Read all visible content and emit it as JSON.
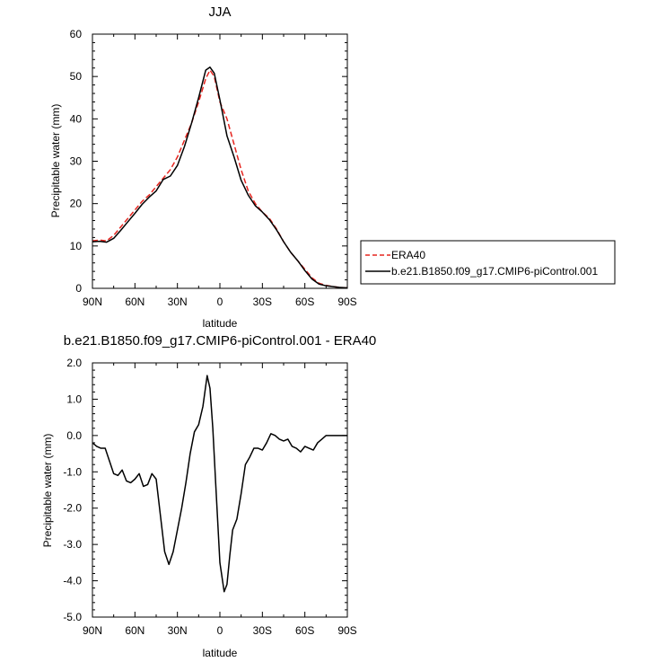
{
  "chart_data": [
    {
      "type": "line",
      "title": "JJA",
      "xlabel": "latitude",
      "ylabel": "Precipitable water (mm)",
      "xlim": [
        -90,
        90
      ],
      "ylim": [
        0,
        60
      ],
      "x_ticks": [
        -90,
        -60,
        -30,
        0,
        30,
        60,
        90
      ],
      "x_tick_labels": [
        "90N",
        "60N",
        "30N",
        "0",
        "30S",
        "60S",
        "90S"
      ],
      "y_ticks": [
        0,
        10,
        20,
        30,
        40,
        50,
        60
      ],
      "y_tick_labels": [
        "0",
        "10",
        "20",
        "30",
        "40",
        "50",
        "60"
      ],
      "legend_position": "right",
      "series": [
        {
          "name": "ERA40",
          "color": "#e6251f",
          "dash": "dashed",
          "x": [
            -90,
            -85,
            -80,
            -75,
            -70,
            -65,
            -60,
            -55,
            -50,
            -45,
            -40,
            -35,
            -30,
            -25,
            -20,
            -15,
            -10,
            -7,
            -4,
            0,
            5,
            10,
            15,
            20,
            25,
            30,
            35,
            40,
            45,
            50,
            55,
            60,
            65,
            70,
            75,
            80,
            85,
            90
          ],
          "y": [
            11.2,
            11.4,
            11.2,
            12.5,
            14.5,
            16.5,
            18.5,
            20.5,
            22,
            24,
            26,
            28,
            31,
            35,
            39,
            44,
            49.5,
            51.5,
            50,
            44,
            40,
            34,
            28,
            23,
            20,
            18,
            16.5,
            14,
            11,
            8.5,
            6.5,
            4.5,
            2.5,
            1.2,
            0.7,
            0.4,
            0.2,
            0.1
          ]
        },
        {
          "name": "b.e21.B1850.f09_g17.CMIP6-piControl.001",
          "color": "#000000",
          "dash": "solid",
          "x": [
            -90,
            -85,
            -80,
            -75,
            -70,
            -65,
            -60,
            -55,
            -50,
            -45,
            -40,
            -35,
            -30,
            -25,
            -20,
            -15,
            -10,
            -7,
            -4,
            0,
            5,
            10,
            15,
            20,
            25,
            30,
            35,
            40,
            45,
            50,
            55,
            60,
            65,
            70,
            75,
            80,
            85,
            90
          ],
          "y": [
            11,
            11.1,
            10.9,
            11.8,
            13.7,
            15.7,
            17.7,
            19.8,
            21.5,
            23,
            25.7,
            26.5,
            29,
            33.5,
            39,
            45,
            51.5,
            52.2,
            50.8,
            44.5,
            36,
            31,
            25.5,
            22,
            19.5,
            18,
            16.2,
            13.8,
            11,
            8.5,
            6.5,
            4.2,
            2.2,
            1,
            0.6,
            0.4,
            0.2,
            0.1
          ]
        }
      ]
    },
    {
      "type": "line",
      "title": "b.e21.B1850.f09_g17.CMIP6-piControl.001 - ERA40",
      "xlabel": "latitude",
      "ylabel": "Precipitable water (mm)",
      "xlim": [
        -90,
        90
      ],
      "ylim": [
        -5,
        2
      ],
      "x_ticks": [
        -90,
        -60,
        -30,
        0,
        30,
        60,
        90
      ],
      "x_tick_labels": [
        "90N",
        "60N",
        "30N",
        "0",
        "30S",
        "60S",
        "90S"
      ],
      "y_ticks": [
        2,
        1,
        0,
        -1,
        -2,
        -3,
        -4,
        -5
      ],
      "y_tick_labels": [
        "2.0",
        "1.0",
        "0.0",
        "-1.0",
        "-2.0",
        "-3.0",
        "-4.0",
        "-5.0"
      ],
      "series": [
        {
          "color": "#000000",
          "dash": "solid",
          "x": [
            -90,
            -87,
            -84,
            -81,
            -78,
            -75,
            -72,
            -69,
            -66,
            -63,
            -60,
            -57,
            -54,
            -51,
            -48,
            -45,
            -42,
            -39,
            -36,
            -33,
            -30,
            -27,
            -24,
            -21,
            -18,
            -15,
            -12,
            -9,
            -7,
            -5,
            -3,
            0,
            3,
            5,
            7,
            9,
            12,
            15,
            18,
            21,
            24,
            27,
            30,
            33,
            36,
            39,
            42,
            45,
            48,
            51,
            54,
            57,
            60,
            63,
            66,
            69,
            72,
            75,
            78,
            81,
            84,
            87,
            90
          ],
          "y": [
            -0.2,
            -0.3,
            -0.35,
            -0.35,
            -0.7,
            -1.05,
            -1.1,
            -0.95,
            -1.25,
            -1.3,
            -1.2,
            -1.05,
            -1.4,
            -1.35,
            -1.05,
            -1.2,
            -2.2,
            -3.2,
            -3.55,
            -3.2,
            -2.6,
            -2.0,
            -1.3,
            -0.5,
            0.1,
            0.3,
            0.8,
            1.65,
            1.3,
            0.2,
            -1.3,
            -3.5,
            -4.3,
            -4.1,
            -3.3,
            -2.6,
            -2.3,
            -1.6,
            -0.8,
            -0.6,
            -0.35,
            -0.35,
            -0.4,
            -0.2,
            0.05,
            0.0,
            -0.1,
            -0.15,
            -0.1,
            -0.3,
            -0.35,
            -0.45,
            -0.3,
            -0.35,
            -0.4,
            -0.2,
            -0.1,
            0.0,
            0.0,
            0.0,
            0.0,
            0.0,
            0.0
          ]
        }
      ]
    }
  ]
}
